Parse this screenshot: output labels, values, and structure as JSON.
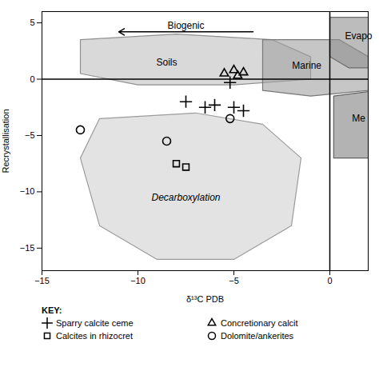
{
  "chart_data": {
    "type": "scatter",
    "xlabel": "δ¹³C PDB",
    "ylabel": "Recrystallisation",
    "xlim": [
      -15,
      2
    ],
    "ylim": [
      -17,
      6
    ],
    "xticks": [
      -15,
      -10,
      -5,
      0
    ],
    "yticks": [
      5,
      0,
      -5,
      -10,
      -15
    ],
    "reference_lines": {
      "x": [
        0
      ],
      "y": [
        0
      ]
    },
    "regions": [
      {
        "name": "Soils",
        "color": "#c0c0c0",
        "label": {
          "text": "Soils",
          "x": -8.5,
          "y": 1.5
        },
        "points": [
          [
            -13,
            0.5
          ],
          [
            -13,
            3.5
          ],
          [
            -8,
            4.0
          ],
          [
            -3,
            3.5
          ],
          [
            -1,
            2.0
          ],
          [
            -1,
            0.0
          ],
          [
            -5,
            -0.5
          ],
          [
            -10,
            -0.5
          ],
          [
            -13,
            0.5
          ]
        ]
      },
      {
        "name": "Marine",
        "color": "#a0a0a0",
        "label": {
          "text": "Marine",
          "x": -1.2,
          "y": 1.2
        },
        "points": [
          [
            -3.5,
            -1.0
          ],
          [
            -3.5,
            3.5
          ],
          [
            0.5,
            3.5
          ],
          [
            2.0,
            2.0
          ],
          [
            2.0,
            -1.0
          ],
          [
            -1.0,
            -1.5
          ],
          [
            -3.5,
            -1.0
          ]
        ]
      },
      {
        "name": "Evapo",
        "color": "#909090",
        "label": {
          "text": "Evapo",
          "x": 1.5,
          "y": 3.8
        },
        "points": [
          [
            0.0,
            2.0
          ],
          [
            0.0,
            5.5
          ],
          [
            2.5,
            5.5
          ],
          [
            2.5,
            1.0
          ],
          [
            1.0,
            1.0
          ],
          [
            0.0,
            2.0
          ]
        ]
      },
      {
        "name": "Me",
        "color": "#808080",
        "label": {
          "text": "Me",
          "x": 1.5,
          "y": -3.5
        },
        "points": [
          [
            0.2,
            -7.0
          ],
          [
            0.2,
            -1.5
          ],
          [
            2.5,
            -1.0
          ],
          [
            2.5,
            -7.0
          ],
          [
            0.2,
            -7.0
          ]
        ]
      },
      {
        "name": "Decarboxylation",
        "color": "#d0d0d0",
        "label": {
          "text": "Decarboxylation",
          "x": -7.5,
          "y": -10.5
        },
        "points": [
          [
            -12,
            -3.5
          ],
          [
            -13,
            -7.0
          ],
          [
            -12,
            -13.0
          ],
          [
            -9,
            -16.0
          ],
          [
            -5,
            -16.0
          ],
          [
            -2,
            -13.0
          ],
          [
            -1.5,
            -7.0
          ],
          [
            -3.5,
            -4.0
          ],
          [
            -7,
            -3.0
          ],
          [
            -12,
            -3.5
          ]
        ]
      }
    ],
    "annotations": [
      {
        "text": "Biogenic",
        "x": -7.5,
        "y": 4.5,
        "arrow": {
          "from": [
            -4,
            4.2
          ],
          "to": [
            -11,
            4.2
          ]
        }
      }
    ],
    "legend_title": "KEY:",
    "series": [
      {
        "name": "Sparry calcite ceme",
        "marker": "plus",
        "color": "black",
        "x": [
          -7.5,
          -6.5,
          -6.0,
          -5.0,
          -4.5,
          -5.2
        ],
        "y": [
          -2,
          -2.5,
          -2.3,
          -2.5,
          -2.8,
          -0.3
        ]
      },
      {
        "name": "Concretionary calcit",
        "marker": "triangle",
        "color": "black",
        "x": [
          -5.5,
          -5.0,
          -4.8,
          -4.5
        ],
        "y": [
          0.5,
          0.8,
          0.3,
          0.6
        ]
      },
      {
        "name": "Calcites in rhizocret",
        "marker": "square",
        "color": "black",
        "x": [
          -8.0,
          -7.5
        ],
        "y": [
          -7.5,
          -7.8
        ]
      },
      {
        "name": "Dolomite/ankerites",
        "marker": "circle",
        "color": "black",
        "x": [
          -13.0,
          -8.5,
          -5.2
        ],
        "y": [
          -4.5,
          -5.5,
          -3.5
        ]
      }
    ]
  }
}
